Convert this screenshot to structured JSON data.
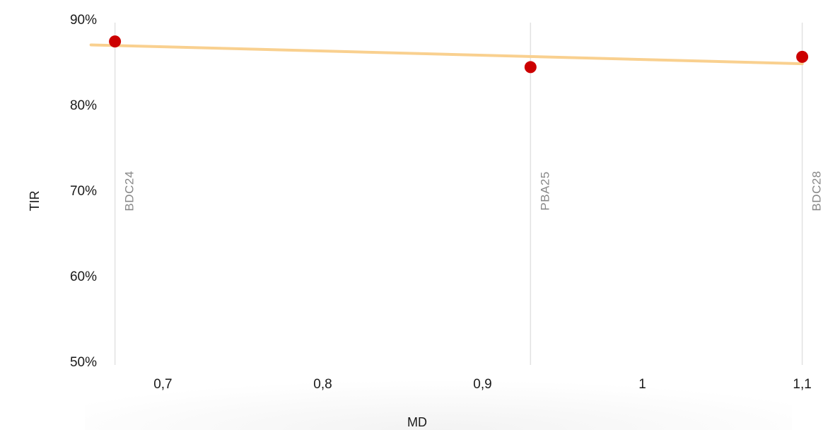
{
  "chart_data": {
    "type": "scatter",
    "xlabel": "MD",
    "ylabel": "TIR",
    "xlim": [
      0.66,
      1.113
    ],
    "ylim": [
      0.5,
      0.9
    ],
    "x_ticks": [
      {
        "value": 0.7,
        "label": "0,7"
      },
      {
        "value": 0.8,
        "label": "0,8"
      },
      {
        "value": 0.9,
        "label": "0,9"
      },
      {
        "value": 1.0,
        "label": "1"
      },
      {
        "value": 1.1,
        "label": "1,1"
      }
    ],
    "y_ticks": [
      {
        "value": 0.5,
        "label": "50%"
      },
      {
        "value": 0.6,
        "label": "60%"
      },
      {
        "value": 0.7,
        "label": "70%"
      },
      {
        "value": 0.8,
        "label": "80%"
      },
      {
        "value": 0.9,
        "label": "90%"
      }
    ],
    "points": [
      {
        "label": "BDC24",
        "x": 0.67,
        "y": 0.878
      },
      {
        "label": "PBA25",
        "x": 0.93,
        "y": 0.848
      },
      {
        "label": "BDC28",
        "x": 1.1,
        "y": 0.86
      }
    ],
    "trendline": {
      "x": [
        0.655,
        1.1
      ],
      "y": [
        0.874,
        0.852
      ]
    },
    "grid": false,
    "colors": {
      "points": "#cc0000",
      "trendline": "#f9d08f",
      "guide_lines": "#e2e2e2",
      "annotation_text": "#888888"
    }
  }
}
